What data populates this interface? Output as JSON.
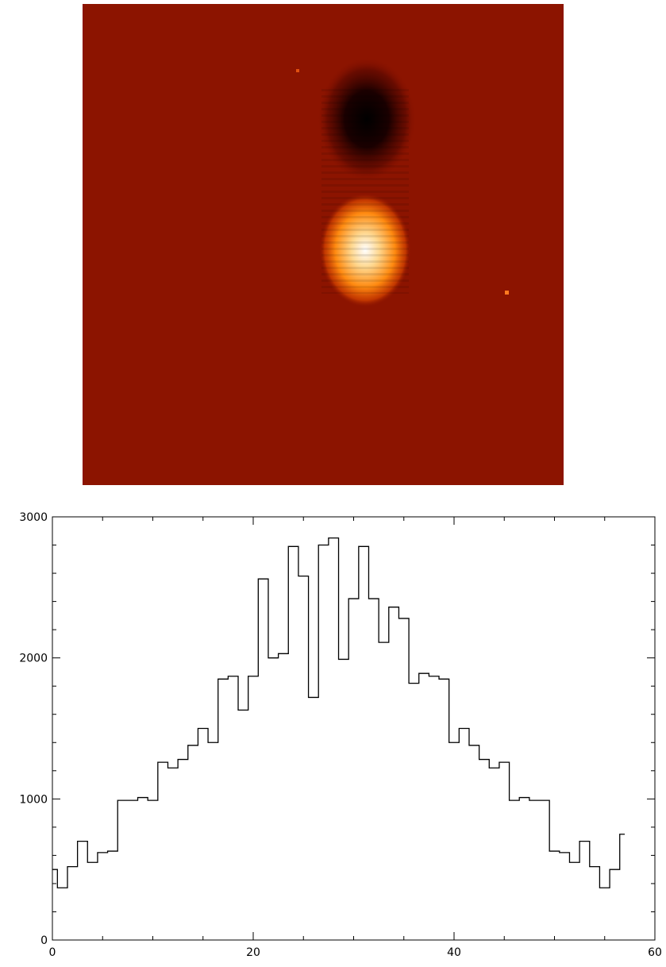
{
  "chart_data": {
    "type": "step",
    "x": [
      0,
      1,
      2,
      3,
      4,
      5,
      6,
      7,
      8,
      9,
      10,
      11,
      12,
      13,
      14,
      15,
      16,
      17,
      18,
      19,
      20,
      21,
      22,
      23,
      24,
      25,
      26,
      27,
      28,
      29,
      30,
      31,
      32,
      33,
      34,
      35,
      36,
      37,
      38,
      39,
      40,
      41,
      42,
      43,
      44,
      45,
      46,
      47,
      48,
      49,
      50,
      51,
      52,
      53,
      54,
      55,
      56,
      57
    ],
    "values": [
      500,
      370,
      520,
      700,
      550,
      620,
      630,
      990,
      990,
      1010,
      990,
      1260,
      1220,
      1280,
      1380,
      1500,
      1400,
      1850,
      1870,
      1630,
      1870,
      2560,
      2000,
      2030,
      2790,
      2580,
      1720,
      2800,
      2850,
      1990,
      2420,
      2790,
      2420,
      2110,
      2360,
      2280,
      1820,
      1890,
      1870,
      1850,
      1400,
      1500,
      1380,
      1280,
      1220,
      1260,
      990,
      1010,
      990,
      990,
      630,
      620,
      550,
      700,
      520,
      370,
      500,
      750
    ],
    "color": "#000000",
    "xlim": [
      0,
      60
    ],
    "ylim": [
      0,
      3000
    ],
    "xticks": [
      0,
      20,
      40,
      60
    ],
    "yticks": [
      0,
      1000,
      2000,
      3000
    ],
    "xminor": 4,
    "yminor": 5
  }
}
